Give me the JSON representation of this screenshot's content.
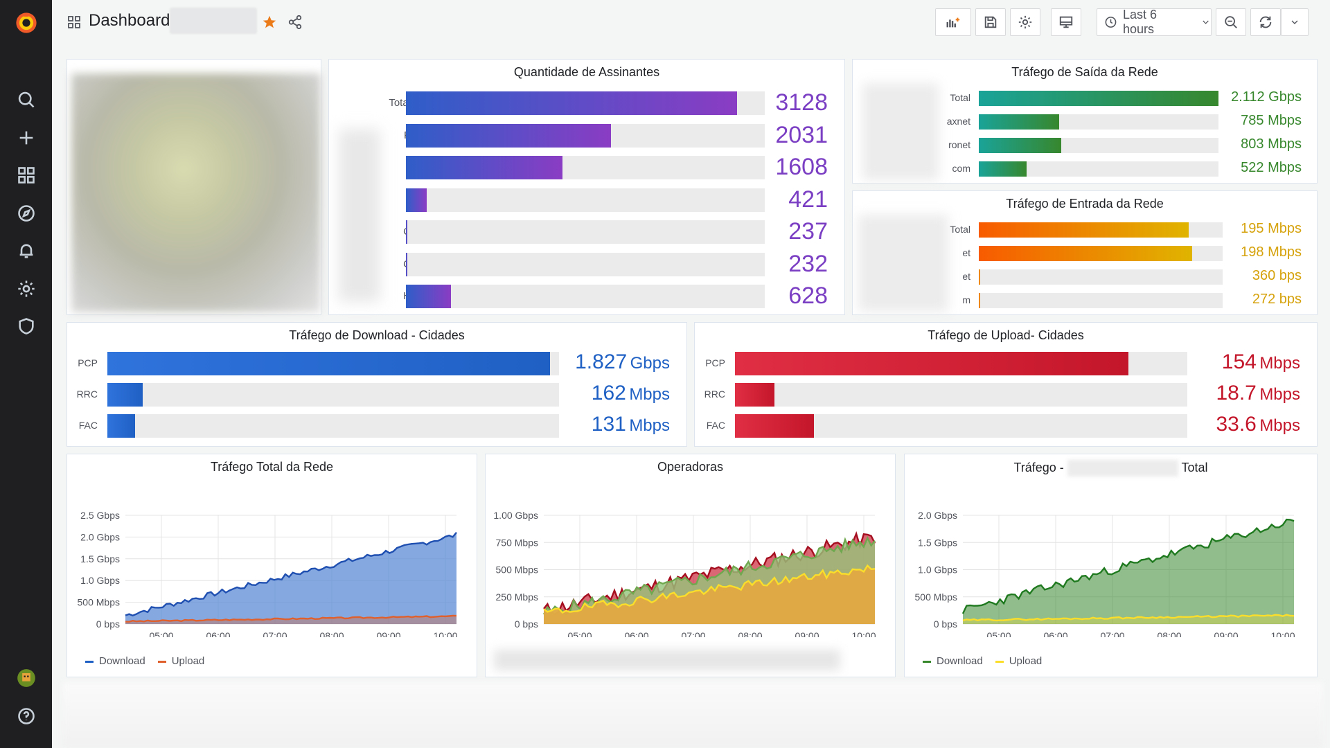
{
  "topbar": {
    "title": "Dashboard",
    "time_range": "Last 6 hours"
  },
  "colors": {
    "purple_bar": "#7b3fc4",
    "green_bar": "#37872d",
    "orange_bar": "#f2a400",
    "blue_bar": "#1f60c4",
    "red_bar": "#c4162a",
    "download_line": "#1f60c4",
    "upload_line": "#e0602d"
  },
  "assinantes": {
    "title": "Quantidade de Assinantes",
    "rows": [
      {
        "label": "Total",
        "value": "3128",
        "frac": 0.923
      },
      {
        "label": "P",
        "value": "2031",
        "frac": 0.572
      },
      {
        "label": ")",
        "value": "1608",
        "frac": 0.437
      },
      {
        "label": ")",
        "value": "421",
        "frac": 0.058
      },
      {
        "label": "C",
        "value": "237",
        "frac": 0.004
      },
      {
        "label": "C",
        "value": "232",
        "frac": 0.003
      },
      {
        "label": "H",
        "value": "628",
        "frac": 0.125
      }
    ]
  },
  "saida": {
    "title": "Tráfego de Saída da Rede",
    "rows": [
      {
        "label": "Total",
        "value": "2.112 Gbps",
        "frac": 1.0
      },
      {
        "label": "axnet",
        "value": "785 Mbps",
        "frac": 0.335
      },
      {
        "label": "ronet",
        "value": "803 Mbps",
        "frac": 0.343
      },
      {
        "label": "com",
        "value": "522 Mbps",
        "frac": 0.2
      }
    ]
  },
  "entrada": {
    "title": "Tráfego de Entrada da Rede",
    "rows": [
      {
        "label": "Total",
        "value": "195 Mbps",
        "frac": 0.86
      },
      {
        "label": "et",
        "value": "198 Mbps",
        "frac": 0.875
      },
      {
        "label": "et",
        "value": "360 bps",
        "frac": 0.003
      },
      {
        "label": "m",
        "value": "272 bps",
        "frac": 0.003
      }
    ]
  },
  "download_cidades": {
    "title": "Tráfego de Download - Cidades",
    "rows": [
      {
        "label": "PCP",
        "num": "1.827",
        "unit": "Gbps",
        "frac": 0.98
      },
      {
        "label": "RRC",
        "num": "162",
        "unit": "Mbps",
        "frac": 0.078
      },
      {
        "label": "FAC",
        "num": "131",
        "unit": "Mbps",
        "frac": 0.062
      }
    ]
  },
  "upload_cidades": {
    "title": "Tráfego de Upload- Cidades",
    "rows": [
      {
        "label": "PCP",
        "num": "154",
        "unit": "Mbps",
        "frac": 0.87
      },
      {
        "label": "RRC",
        "num": "18.7",
        "unit": "Mbps",
        "frac": 0.088
      },
      {
        "label": "FAC",
        "num": "33.6",
        "unit": "Mbps",
        "frac": 0.175
      }
    ]
  },
  "total_rede": {
    "title": "Tráfego Total da Rede",
    "yticks": [
      "2.5 Gbps",
      "2.0 Gbps",
      "1.5 Gbps",
      "1.0 Gbps",
      "500 Mbps",
      "0 bps"
    ],
    "xticks": [
      "05:00",
      "06:00",
      "07:00",
      "08:00",
      "09:00",
      "10:00"
    ],
    "legend": [
      "Download",
      "Upload"
    ]
  },
  "operadoras": {
    "title": "Operadoras",
    "yticks": [
      "1.00 Gbps",
      "750 Mbps",
      "500 Mbps",
      "250 Mbps",
      "0 bps"
    ],
    "xticks": [
      "05:00",
      "06:00",
      "07:00",
      "08:00",
      "09:00",
      "10:00"
    ]
  },
  "trafego_total": {
    "title_left": "Tráfego -",
    "title_right": "Total",
    "yticks": [
      "2.0 Gbps",
      "1.5 Gbps",
      "1.0 Gbps",
      "500 Mbps",
      "0 bps"
    ],
    "xticks": [
      "05:00",
      "06:00",
      "07:00",
      "08:00",
      "09:00",
      "10:00"
    ],
    "legend": [
      "Download",
      "Upload"
    ]
  }
}
